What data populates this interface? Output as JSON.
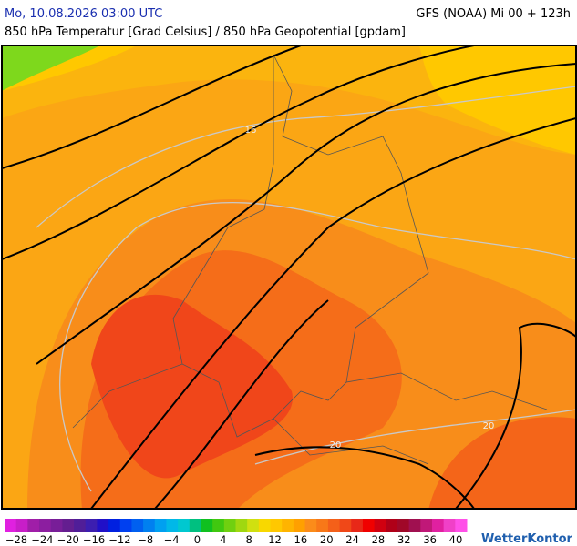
{
  "header": {
    "datetime": "Mo, 10.08.2026 03:00 UTC",
    "model_run": "GFS (NOAA) Mi 00 + 123h",
    "subtitle": "850 hPa Temperatur [Grad Celsius] / 850 hPa Geopotential [gpdam]"
  },
  "map": {
    "contour_labels": [
      "16",
      "20",
      "20"
    ]
  },
  "colorbar": {
    "labels": [
      "−28",
      "−24",
      "−20",
      "−16",
      "−12",
      "−8",
      "−4",
      "0",
      "4",
      "8",
      "12",
      "16",
      "20",
      "24",
      "28",
      "32",
      "36",
      "40"
    ]
  },
  "logo": "WetterKontor"
}
